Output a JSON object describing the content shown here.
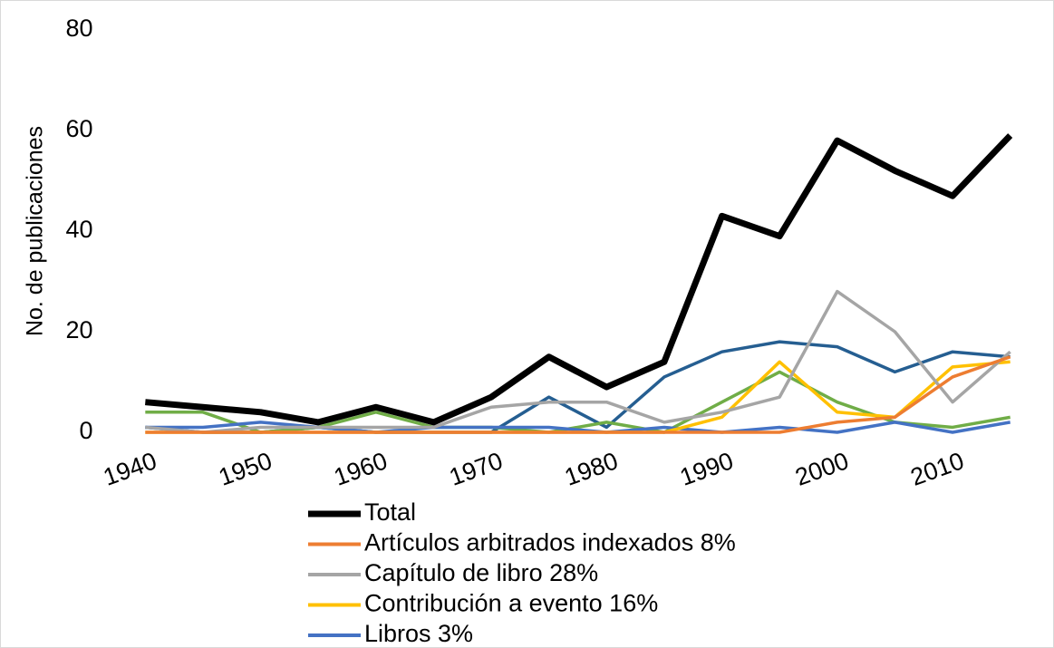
{
  "chart_data": {
    "type": "line",
    "y_label": "No. de publicaciones",
    "x": [
      1940,
      1945,
      1950,
      1955,
      1960,
      1965,
      1970,
      1975,
      1980,
      1985,
      1990,
      1995,
      2000,
      2005,
      2010,
      2015
    ],
    "xlim": [
      1937.5,
      2017.5
    ],
    "xticks": [
      1940,
      1950,
      1960,
      1970,
      1980,
      1990,
      2000,
      2010
    ],
    "ylim": [
      0,
      80
    ],
    "yticks": [
      0,
      20,
      40,
      60,
      80
    ],
    "grid": false,
    "legend": "bottom",
    "series": [
      {
        "color": "#255e91",
        "values": [
          1,
          0,
          0,
          1,
          0,
          0,
          0,
          7,
          1,
          11,
          16,
          18,
          17,
          12,
          16,
          15
        ]
      },
      {
        "color": "#70ad47",
        "values": [
          4,
          4,
          0,
          1,
          4,
          1,
          1,
          0,
          2,
          0,
          6,
          12,
          6,
          2,
          1,
          3
        ]
      },
      {
        "name": "Libros 3%",
        "color": "#4472c4",
        "values": [
          1,
          1,
          2,
          1,
          0,
          1,
          1,
          1,
          0,
          1,
          0,
          1,
          0,
          2,
          0,
          2
        ]
      },
      {
        "name": "Contribución a evento 16%",
        "color": "#ffc000",
        "values": [
          0,
          0,
          0,
          0,
          0,
          0,
          0,
          0,
          0,
          0,
          3,
          14,
          4,
          3,
          13,
          14
        ]
      },
      {
        "name": "Capítulo de libro 28%",
        "color": "#a5a5a5",
        "values": [
          1,
          0,
          1,
          1,
          1,
          1,
          5,
          6,
          6,
          2,
          4,
          7,
          28,
          20,
          6,
          16
        ]
      },
      {
        "name": "Artículos arbitrados indexados 8%",
        "color": "#ed7d31",
        "values": [
          0,
          0,
          0,
          0,
          0,
          0,
          0,
          0,
          0,
          0,
          0,
          0,
          2,
          3,
          11,
          15
        ]
      },
      {
        "name": "Total",
        "color": "#000000",
        "values": [
          6,
          5,
          4,
          2,
          5,
          2,
          7,
          15,
          9,
          14,
          43,
          39,
          58,
          52,
          47,
          59
        ]
      }
    ]
  }
}
